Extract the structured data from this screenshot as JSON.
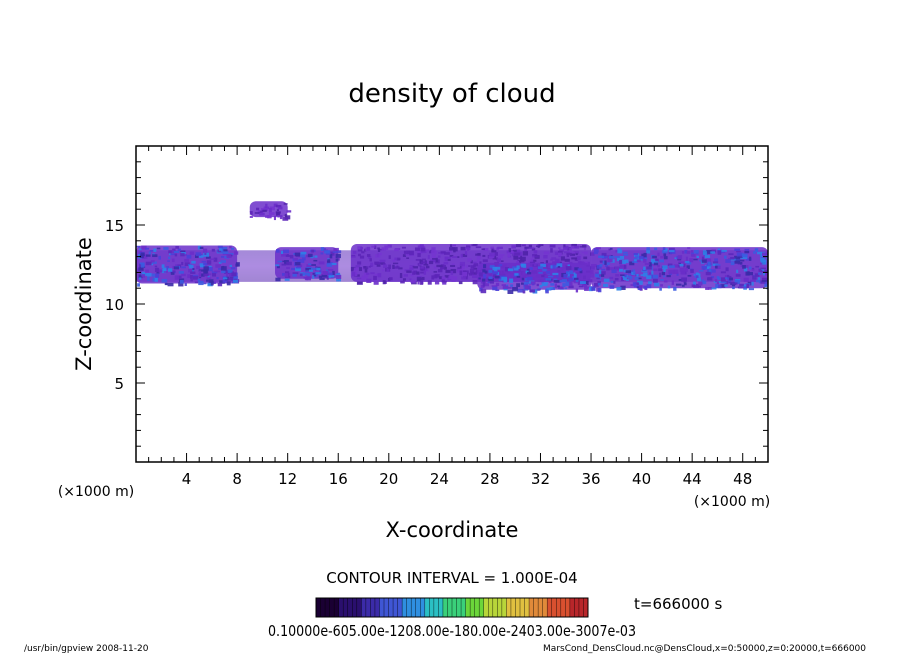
{
  "footer": {
    "left": "/usr/bin/gpview   2008-11-20",
    "right": "MarsCond_DensCloud.nc@DensCloud,x=0:50000,z=0:20000,t=666000"
  },
  "colorbar": {
    "contour_interval": "CONTOUR INTERVAL = 1.000E-04",
    "time_label": "t=666000 s",
    "tick_labels_text": "0.10000e-605.00e-1208.00e-180.00e-2403.00e-3007e-03",
    "colors": [
      "#1a0033",
      "#2a0f6e",
      "#3b2ba8",
      "#3f56d4",
      "#2f8fe0",
      "#2bbfc4",
      "#3ad07a",
      "#6bd63a",
      "#b8d63a",
      "#e0c040",
      "#e08a3a",
      "#d8502f",
      "#b8262a"
    ]
  },
  "chart_data": {
    "type": "heatmap",
    "title": "density of cloud",
    "xlabel": "X-coordinate",
    "ylabel": "Z-coordinate",
    "x_unit": "(×1000 m)",
    "z_unit": "(×1000 m)",
    "xlim": [
      0,
      50
    ],
    "ylim": [
      0,
      20
    ],
    "x_ticks": [
      4,
      8,
      12,
      16,
      20,
      24,
      28,
      32,
      36,
      40,
      44,
      48
    ],
    "y_ticks": [
      5,
      10,
      15
    ],
    "cloud_layer": {
      "z_range": [
        11,
        14
      ],
      "x_range": [
        0,
        50
      ]
    },
    "cloud_patches": [
      {
        "x": [
          9,
          12
        ],
        "z": [
          15.5,
          16.5
        ],
        "level": "low"
      },
      {
        "x": [
          0,
          8
        ],
        "z": [
          11.3,
          13.7
        ],
        "level": "medium"
      },
      {
        "x": [
          11,
          16
        ],
        "z": [
          11.6,
          13.6
        ],
        "level": "medium"
      },
      {
        "x": [
          17,
          36
        ],
        "z": [
          11.4,
          13.8
        ],
        "level": "low"
      },
      {
        "x": [
          27,
          36
        ],
        "z": [
          10.9,
          12.6
        ],
        "level": "medium"
      },
      {
        "x": [
          36,
          50
        ],
        "z": [
          11.0,
          13.6
        ],
        "level": "medium"
      }
    ]
  }
}
